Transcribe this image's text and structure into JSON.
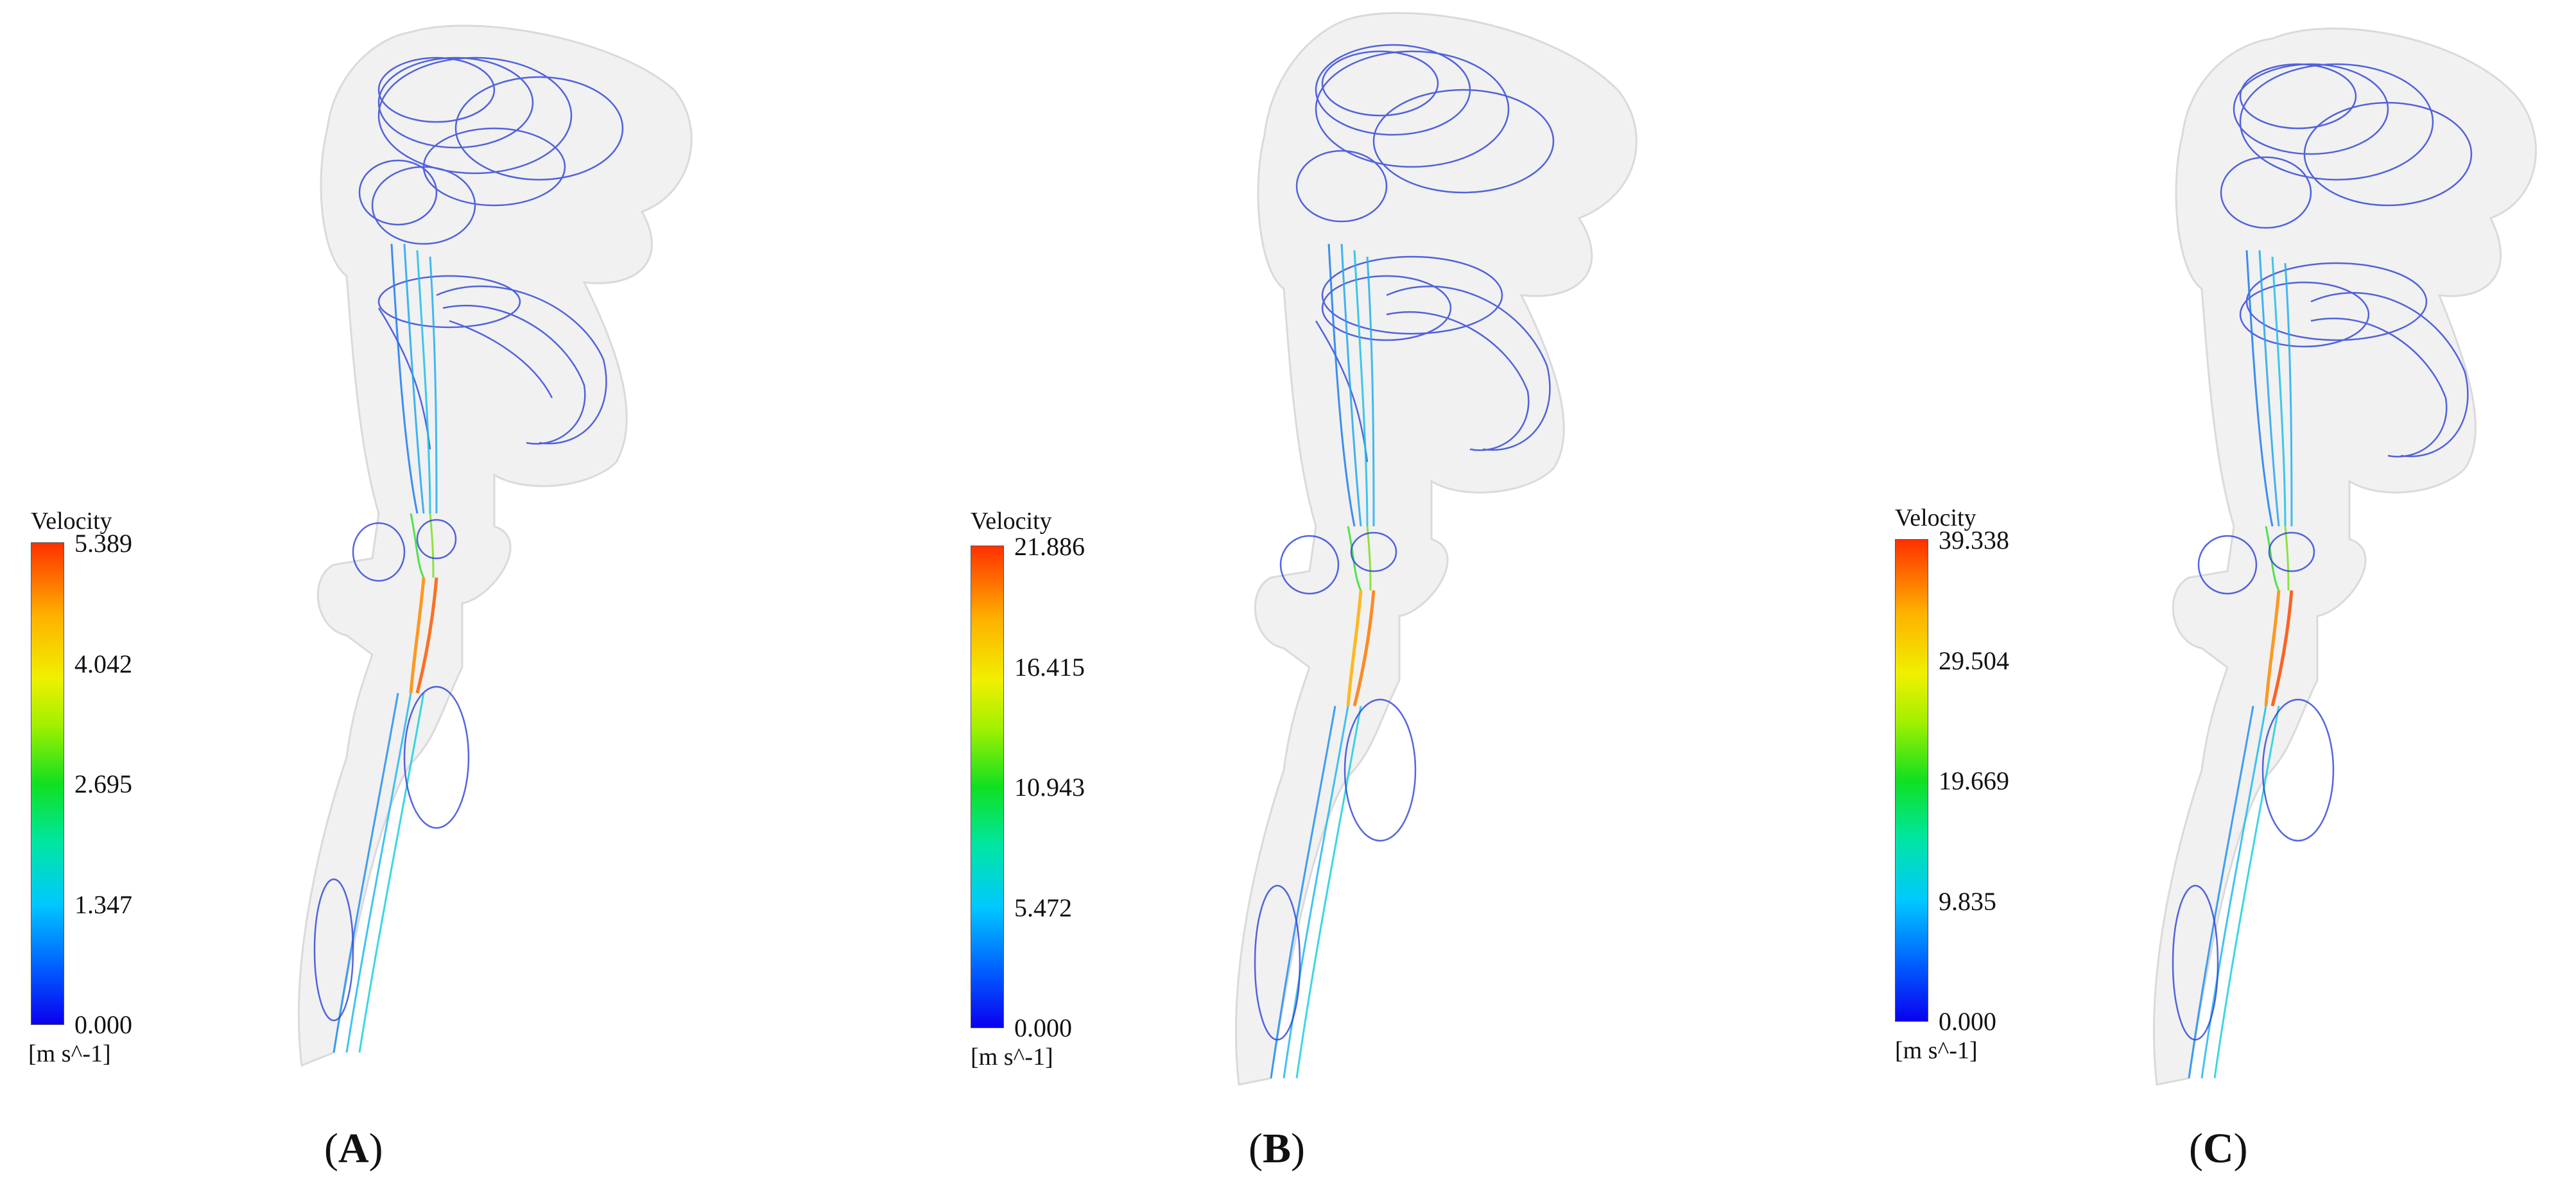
{
  "colors": {
    "colormap": [
      "#0a00f0",
      "#0060ff",
      "#00c8ff",
      "#00e6a0",
      "#10e020",
      "#a0f000",
      "#f0f000",
      "#ffb000",
      "#ff3000"
    ],
    "streamline_low": "#2a3fd8",
    "geometry_shell": "#d8d8d8"
  },
  "panels": [
    {
      "label_letter": "A",
      "legend": {
        "title": "Velocity",
        "unit": "[m s^-1]",
        "ticks": [
          "5.389",
          "4.042",
          "2.695",
          "1.347",
          "0.000"
        ]
      }
    },
    {
      "label_letter": "B",
      "legend": {
        "title": "Velocity",
        "unit": "[m s^-1]",
        "ticks": [
          "21.886",
          "16.415",
          "10.943",
          "5.472",
          "0.000"
        ]
      }
    },
    {
      "label_letter": "C",
      "legend": {
        "title": "Velocity",
        "unit": "[m s^-1]",
        "ticks": [
          "39.338",
          "29.504",
          "19.669",
          "9.835",
          "0.000"
        ]
      }
    }
  ]
}
